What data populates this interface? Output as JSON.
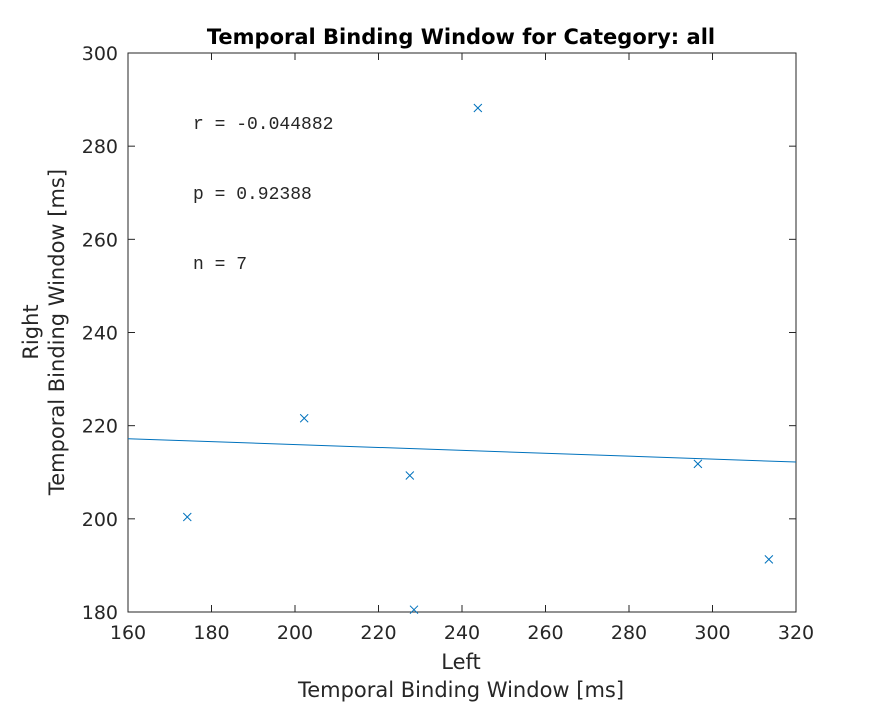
{
  "chart_data": {
    "type": "scatter",
    "title": "Temporal Binding Window for Category: all",
    "xlabel": [
      "Left",
      "Temporal Binding Window [ms]"
    ],
    "ylabel": [
      "Right",
      "Temporal Binding Window [ms]"
    ],
    "xlim": [
      160,
      320
    ],
    "ylim": [
      180,
      300
    ],
    "xticks": [
      160,
      180,
      200,
      220,
      240,
      260,
      280,
      300,
      320
    ],
    "yticks": [
      180,
      200,
      220,
      240,
      260,
      280,
      300
    ],
    "grid": false,
    "marker": "x",
    "color": "#0072bd",
    "points": [
      {
        "x": 174.2,
        "y": 200.4
      },
      {
        "x": 202.2,
        "y": 221.6
      },
      {
        "x": 227.5,
        "y": 209.3
      },
      {
        "x": 228.5,
        "y": 180.5
      },
      {
        "x": 243.8,
        "y": 288.2
      },
      {
        "x": 296.5,
        "y": 211.8
      },
      {
        "x": 313.5,
        "y": 191.3
      }
    ],
    "fit_line": {
      "x": [
        160,
        320
      ],
      "y": [
        217.2,
        212.2
      ]
    },
    "annotations": [
      "r = -0.044882",
      "p = 0.92388",
      "n = 7"
    ]
  }
}
